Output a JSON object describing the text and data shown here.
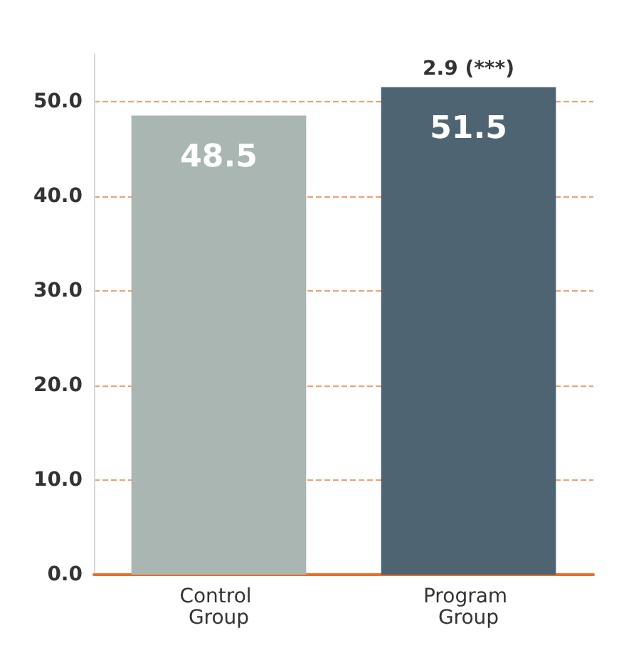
{
  "chart_data": {
    "type": "bar",
    "categories": [
      "Control Group",
      "Program Group"
    ],
    "values": [
      48.5,
      51.5
    ],
    "colors": [
      "#a9b6b1",
      "#4e6472"
    ],
    "ylim": [
      0,
      55
    ],
    "yticks": [
      {
        "value": 0,
        "label": "0.0"
      },
      {
        "value": 10,
        "label": "10.0"
      },
      {
        "value": 20,
        "label": "20.0"
      },
      {
        "value": 30,
        "label": "30.0"
      },
      {
        "value": 40,
        "label": "40.0"
      },
      {
        "value": 50,
        "label": "50.0"
      }
    ],
    "grid": "y",
    "data_labels": true,
    "annotations": [
      {
        "text": "2.9 (***)",
        "x": "Program Group",
        "y": 51.5
      }
    ]
  }
}
